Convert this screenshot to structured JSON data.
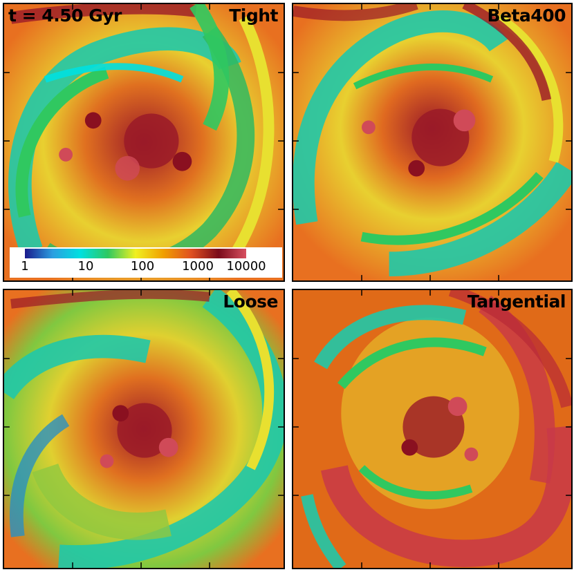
{
  "time_label": "t = 4.50 Gyr",
  "panels": [
    {
      "label": "Tight"
    },
    {
      "label": "Beta400"
    },
    {
      "label": "Loose"
    },
    {
      "label": "Tangential"
    }
  ],
  "colorbar": {
    "ticks": [
      "1",
      "10",
      "100",
      "1000",
      "10000"
    ],
    "colors": [
      "#1a1a8c",
      "#2b9ee0",
      "#00e0e0",
      "#2ec860",
      "#f0f020",
      "#f0a000",
      "#e05020",
      "#7a0a1a",
      "#d85060"
    ]
  },
  "colors": {
    "background_field": "#e8701a",
    "cool_teal": "#1ccaa8",
    "green": "#3cc050",
    "yellow": "#e8e030",
    "dark_red": "#8a1020",
    "pink": "#d04a58"
  }
}
